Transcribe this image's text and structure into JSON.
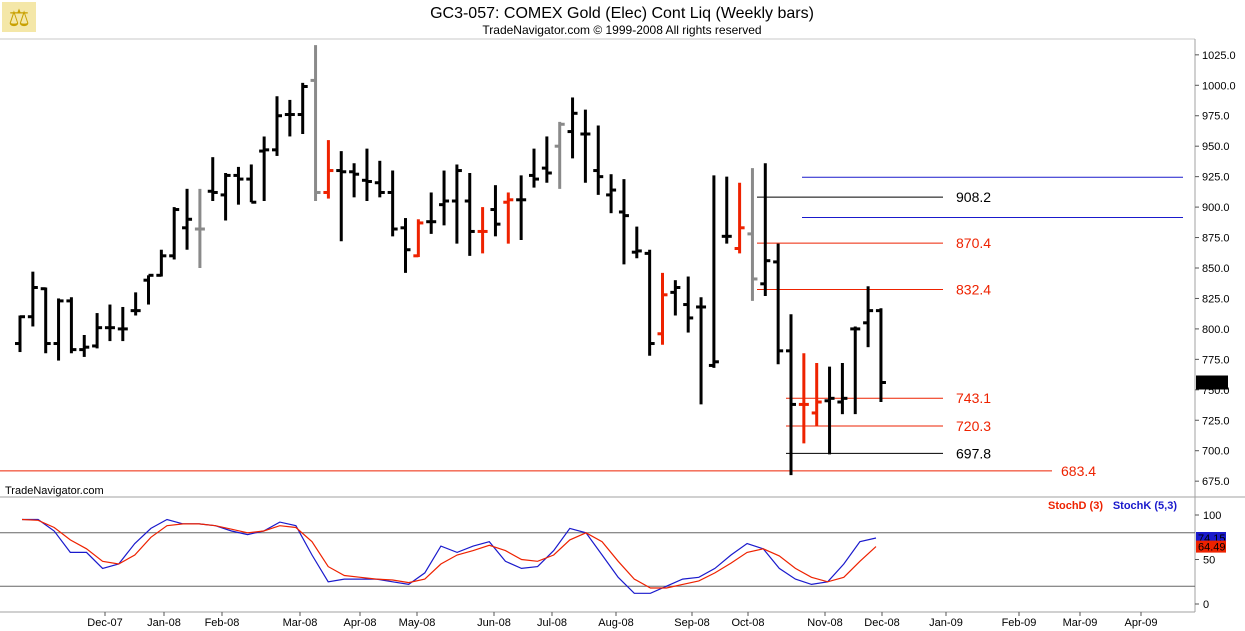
{
  "header": {
    "title": "GC3-057:  COMEX Gold (Elec) Cont Liq  (Weekly bars)",
    "subtitle": "TradeNavigator.com © 1999-2008 All rights reserved",
    "watermark": "TradeNavigator.com"
  },
  "colors": {
    "up": "#000000",
    "down": "#ee2200",
    "neutral": "#8a8a8a",
    "stoch_d": "#ee2200",
    "stoch_k": "#1a1acc",
    "fib_red": "#ee2200",
    "fib_black": "#000000",
    "channel": "#1a1acc"
  },
  "chart_data": [
    {
      "type": "ohlc",
      "title": "GC3-057:  COMEX Gold (Elec) Cont Liq  (Weekly bars)",
      "ylim": [
        662,
        1038
      ],
      "y_ticks": [
        "1025.0",
        "1000.0",
        "975.0",
        "950.0",
        "925.0",
        "900.0",
        "875.0",
        "850.0",
        "825.0",
        "800.0",
        "775.0",
        "750.0",
        "725.0",
        "700.0",
        "675.0"
      ],
      "y_tick_values": [
        1025,
        1000,
        975,
        950,
        925,
        900,
        875,
        850,
        825,
        800,
        775,
        750,
        725,
        700,
        675
      ],
      "x_labels": [
        "Dec-07",
        "Jan-08",
        "Feb-08",
        "Mar-08",
        "Apr-08",
        "May-08",
        "Jun-08",
        "Jul-08",
        "Aug-08",
        "Sep-08",
        "Oct-08",
        "Nov-08",
        "Dec-08",
        "Jan-09",
        "Feb-09",
        "Mar-09",
        "Apr-09"
      ],
      "last_price": "756.0",
      "bars": [
        {
          "o": 788,
          "h": 811,
          "l": 781,
          "c": 810,
          "k": "u"
        },
        {
          "o": 810,
          "h": 847,
          "l": 802,
          "c": 834,
          "k": "u"
        },
        {
          "o": 833,
          "h": 834,
          "l": 780,
          "c": 788,
          "k": "u"
        },
        {
          "o": 788,
          "h": 825,
          "l": 774,
          "c": 823,
          "k": "u"
        },
        {
          "o": 823,
          "h": 826,
          "l": 780,
          "c": 783,
          "k": "u"
        },
        {
          "o": 783,
          "h": 795,
          "l": 777,
          "c": 785,
          "k": "u"
        },
        {
          "o": 786,
          "h": 813,
          "l": 784,
          "c": 801,
          "k": "u"
        },
        {
          "o": 801,
          "h": 820,
          "l": 790,
          "c": 801,
          "k": "u"
        },
        {
          "o": 800,
          "h": 818,
          "l": 790,
          "c": 800,
          "k": "u"
        },
        {
          "o": 815,
          "h": 830,
          "l": 811,
          "c": 815,
          "k": "u"
        },
        {
          "o": 840,
          "h": 844,
          "l": 820,
          "c": 844,
          "k": "u"
        },
        {
          "o": 844,
          "h": 865,
          "l": 843,
          "c": 860,
          "k": "u"
        },
        {
          "o": 860,
          "h": 900,
          "l": 857,
          "c": 898,
          "k": "u"
        },
        {
          "o": 883,
          "h": 915,
          "l": 865,
          "c": 890,
          "k": "u"
        },
        {
          "o": 882,
          "h": 915,
          "l": 850,
          "c": 882,
          "k": "n"
        },
        {
          "o": 913,
          "h": 941,
          "l": 905,
          "c": 912,
          "k": "u"
        },
        {
          "o": 910,
          "h": 928,
          "l": 889,
          "c": 926,
          "k": "u"
        },
        {
          "o": 926,
          "h": 933,
          "l": 902,
          "c": 923,
          "k": "u"
        },
        {
          "o": 923,
          "h": 935,
          "l": 904,
          "c": 904,
          "k": "u"
        },
        {
          "o": 946,
          "h": 958,
          "l": 905,
          "c": 947,
          "k": "u"
        },
        {
          "o": 947,
          "h": 991,
          "l": 942,
          "c": 975,
          "k": "u"
        },
        {
          "o": 976,
          "h": 988,
          "l": 958,
          "c": 976,
          "k": "u"
        },
        {
          "o": 976,
          "h": 1002,
          "l": 960,
          "c": 999,
          "k": "u"
        },
        {
          "o": 1004,
          "h": 1033,
          "l": 905,
          "c": 912,
          "k": "n"
        },
        {
          "o": 912,
          "h": 955,
          "l": 907,
          "c": 930,
          "k": "d"
        },
        {
          "o": 930,
          "h": 946,
          "l": 872,
          "c": 929,
          "k": "u"
        },
        {
          "o": 929,
          "h": 936,
          "l": 908,
          "c": 927,
          "k": "u"
        },
        {
          "o": 922,
          "h": 948,
          "l": 905,
          "c": 921,
          "k": "u"
        },
        {
          "o": 920,
          "h": 938,
          "l": 908,
          "c": 912,
          "k": "u"
        },
        {
          "o": 912,
          "h": 930,
          "l": 876,
          "c": 882,
          "k": "u"
        },
        {
          "o": 883,
          "h": 891,
          "l": 846,
          "c": 865,
          "k": "u"
        },
        {
          "o": 860,
          "h": 890,
          "l": 859,
          "c": 887,
          "k": "d"
        },
        {
          "o": 888,
          "h": 912,
          "l": 878,
          "c": 888,
          "k": "u"
        },
        {
          "o": 902,
          "h": 930,
          "l": 885,
          "c": 905,
          "k": "u"
        },
        {
          "o": 905,
          "h": 935,
          "l": 870,
          "c": 930,
          "k": "u"
        },
        {
          "o": 905,
          "h": 928,
          "l": 860,
          "c": 880,
          "k": "u"
        },
        {
          "o": 880,
          "h": 900,
          "l": 862,
          "c": 880,
          "k": "d"
        },
        {
          "o": 898,
          "h": 918,
          "l": 876,
          "c": 886,
          "k": "u"
        },
        {
          "o": 904,
          "h": 912,
          "l": 870,
          "c": 906,
          "k": "d"
        },
        {
          "o": 906,
          "h": 926,
          "l": 873,
          "c": 906,
          "k": "u"
        },
        {
          "o": 926,
          "h": 948,
          "l": 916,
          "c": 923,
          "k": "u"
        },
        {
          "o": 932,
          "h": 958,
          "l": 920,
          "c": 928,
          "k": "u"
        },
        {
          "o": 950,
          "h": 970,
          "l": 915,
          "c": 968,
          "k": "n"
        },
        {
          "o": 962,
          "h": 990,
          "l": 940,
          "c": 977,
          "k": "u"
        },
        {
          "o": 960,
          "h": 980,
          "l": 920,
          "c": 960,
          "k": "u"
        },
        {
          "o": 930,
          "h": 967,
          "l": 910,
          "c": 925,
          "k": "u"
        },
        {
          "o": 910,
          "h": 927,
          "l": 895,
          "c": 914,
          "k": "u"
        },
        {
          "o": 896,
          "h": 923,
          "l": 853,
          "c": 893,
          "k": "u"
        },
        {
          "o": 863,
          "h": 884,
          "l": 858,
          "c": 864,
          "k": "u"
        },
        {
          "o": 862,
          "h": 865,
          "l": 778,
          "c": 788,
          "k": "u"
        },
        {
          "o": 796,
          "h": 846,
          "l": 787,
          "c": 828,
          "k": "d"
        },
        {
          "o": 830,
          "h": 840,
          "l": 811,
          "c": 834,
          "k": "u"
        },
        {
          "o": 820,
          "h": 843,
          "l": 797,
          "c": 809,
          "k": "u"
        },
        {
          "o": 818,
          "h": 826,
          "l": 738,
          "c": 818,
          "k": "u"
        },
        {
          "o": 770,
          "h": 926,
          "l": 768,
          "c": 773,
          "k": "u"
        },
        {
          "o": 876,
          "h": 925,
          "l": 870,
          "c": 876,
          "k": "u"
        },
        {
          "o": 866,
          "h": 920,
          "l": 862,
          "c": 883,
          "k": "d"
        },
        {
          "o": 878,
          "h": 932,
          "l": 823,
          "c": 841,
          "k": "n"
        },
        {
          "o": 837,
          "h": 936,
          "l": 827,
          "c": 856,
          "k": "u"
        },
        {
          "o": 855,
          "h": 870,
          "l": 771,
          "c": 782,
          "k": "u"
        },
        {
          "o": 782,
          "h": 812,
          "l": 680,
          "c": 738,
          "k": "u"
        },
        {
          "o": 738,
          "h": 780,
          "l": 706,
          "c": 738,
          "k": "d"
        },
        {
          "o": 731,
          "h": 772,
          "l": 720,
          "c": 740,
          "k": "d"
        },
        {
          "o": 741,
          "h": 769,
          "l": 697,
          "c": 743,
          "k": "u"
        },
        {
          "o": 740,
          "h": 772,
          "l": 730,
          "c": 743,
          "k": "u"
        },
        {
          "o": 800,
          "h": 802,
          "l": 730,
          "c": 800,
          "k": "u"
        },
        {
          "o": 805,
          "h": 835,
          "l": 785,
          "c": 815,
          "k": "u"
        },
        {
          "o": 815,
          "h": 817,
          "l": 740,
          "c": 756,
          "k": "u"
        }
      ],
      "levels": [
        {
          "label": "908.2",
          "value": 908.2,
          "color": "black",
          "x0": 757,
          "x1": 943,
          "lx": 956
        },
        {
          "label": "870.4",
          "value": 870.4,
          "color": "red",
          "x0": 757,
          "x1": 943,
          "lx": 956
        },
        {
          "label": "832.4",
          "value": 832.4,
          "color": "red",
          "x0": 757,
          "x1": 943,
          "lx": 956
        },
        {
          "label": "743.1",
          "value": 743.1,
          "color": "red",
          "x0": 786,
          "x1": 943,
          "lx": 956
        },
        {
          "label": "720.3",
          "value": 720.3,
          "color": "red",
          "x0": 786,
          "x1": 943,
          "lx": 956
        },
        {
          "label": "697.8",
          "value": 697.8,
          "color": "black",
          "x0": 786,
          "x1": 943,
          "lx": 956
        },
        {
          "label": "683.4",
          "value": 683.4,
          "color": "red",
          "x0": 0,
          "x1": 1052,
          "lx": 1061
        }
      ],
      "channel_lines": [
        {
          "value": 924.5,
          "x0": 802,
          "x1": 1183
        },
        {
          "value": 891.5,
          "x0": 802,
          "x1": 1183
        }
      ]
    },
    {
      "type": "line",
      "legend": [
        "StochD (3)",
        "StochK (5,3)"
      ],
      "ylim": [
        0,
        100
      ],
      "y_ticks": [
        "100",
        "50",
        "0"
      ],
      "y_tick_values": [
        100,
        50,
        0
      ],
      "ref_lines": [
        80,
        20
      ],
      "last_values": {
        "k": "74.15",
        "d": "64.49"
      },
      "series": [
        {
          "name": "StochK (5,3)",
          "values": [
            95,
            95,
            82,
            58,
            58,
            40,
            45,
            68,
            85,
            95,
            90,
            90,
            88,
            82,
            78,
            82,
            92,
            88,
            55,
            25,
            28,
            28,
            28,
            25,
            22,
            35,
            65,
            58,
            65,
            70,
            48,
            40,
            42,
            60,
            85,
            80,
            55,
            30,
            12,
            12,
            20,
            28,
            30,
            40,
            55,
            68,
            62,
            40,
            28,
            22,
            25,
            45,
            70,
            74.15
          ]
        },
        {
          "name": "StochD (3)",
          "values": [
            95,
            94,
            86,
            72,
            62,
            48,
            45,
            55,
            75,
            88,
            90,
            90,
            88,
            84,
            80,
            82,
            88,
            86,
            70,
            42,
            32,
            30,
            28,
            27,
            24,
            28,
            45,
            55,
            60,
            66,
            60,
            50,
            48,
            55,
            72,
            80,
            70,
            48,
            28,
            18,
            18,
            22,
            26,
            35,
            46,
            58,
            62,
            54,
            40,
            30,
            25,
            30,
            48,
            64.49
          ]
        }
      ]
    }
  ]
}
